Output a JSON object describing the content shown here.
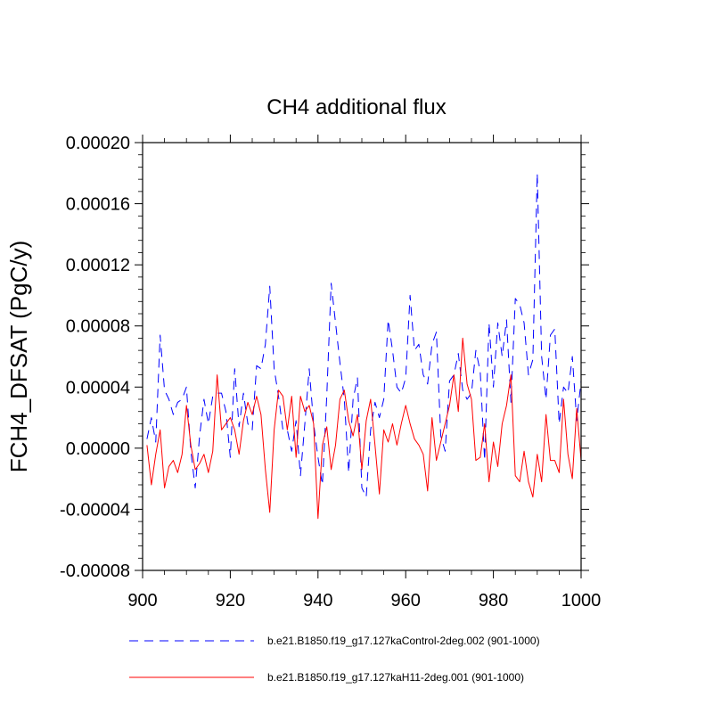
{
  "chart_data": {
    "type": "line",
    "title": "CH4 additional flux",
    "xlabel": "",
    "ylabel": "FCH4_DFSAT  (PgC/y)",
    "xlim": [
      900,
      1000
    ],
    "ylim": [
      -8e-05,
      0.0002
    ],
    "x_ticks": [
      900,
      920,
      940,
      960,
      980,
      1000
    ],
    "x_tick_labels": [
      "900",
      "920",
      "940",
      "960",
      "980",
      "1000"
    ],
    "y_ticks": [
      -8e-05,
      -4e-05,
      0,
      4e-05,
      8e-05,
      0.00012,
      0.00016,
      0.0002
    ],
    "y_tick_labels": [
      "-0.00008",
      "-0.00004",
      "0.00000",
      "0.00004",
      "0.00008",
      "0.00012",
      "0.00016",
      "0.00020"
    ],
    "grid": false,
    "legend_position": "bottom",
    "x": [
      901,
      902,
      903,
      904,
      905,
      906,
      907,
      908,
      909,
      910,
      911,
      912,
      913,
      914,
      915,
      916,
      917,
      918,
      919,
      920,
      921,
      922,
      923,
      924,
      925,
      926,
      927,
      928,
      929,
      930,
      931,
      932,
      933,
      934,
      935,
      936,
      937,
      938,
      939,
      940,
      941,
      942,
      943,
      944,
      945,
      946,
      947,
      948,
      949,
      950,
      951,
      952,
      953,
      954,
      955,
      956,
      957,
      958,
      959,
      960,
      961,
      962,
      963,
      964,
      965,
      966,
      967,
      968,
      969,
      970,
      971,
      972,
      973,
      974,
      975,
      976,
      977,
      978,
      979,
      980,
      981,
      982,
      983,
      984,
      985,
      986,
      987,
      988,
      989,
      990,
      991,
      992,
      993,
      994,
      995,
      996,
      997,
      998,
      999,
      1000
    ],
    "series": [
      {
        "name": "b.e21.B1850.f19_g17.127kaControl-2deg.002 (901-1000)",
        "color": "#0000ff",
        "dash": "dashed",
        "values": [
          6e-06,
          2e-05,
          4e-06,
          7.4e-05,
          3.8e-05,
          3.2e-05,
          2.2e-05,
          3e-05,
          3.2e-05,
          4e-05,
          -2e-06,
          -2.6e-05,
          8e-06,
          3.2e-05,
          1.6e-05,
          3.4e-05,
          3.6e-05,
          3.6e-05,
          2.4e-05,
          -6e-06,
          5.2e-05,
          1.4e-05,
          3.6e-05,
          1.6e-05,
          1.2e-05,
          5.4e-05,
          5.2e-05,
          6.8e-05,
          0.000106,
          5.2e-05,
          3.4e-05,
          1.2e-05,
          1.2e-05,
          -2e-06,
          1.8e-05,
          -1.8e-05,
          1.6e-05,
          5.2e-05,
          1.6e-05,
          -6e-06,
          -2.4e-05,
          3.4e-05,
          0.000108,
          8.2e-05,
          5.6e-05,
          3.2e-05,
          -1.6e-05,
          3.2e-05,
          4.6e-05,
          -2.6e-05,
          -3.2e-05,
          1.2e-05,
          3e-05,
          2e-05,
          3.2e-05,
          8.4e-05,
          6.4e-05,
          4e-05,
          3.6e-05,
          4.6e-05,
          0.0001,
          6.4e-05,
          6.8e-05,
          4.8e-05,
          4.2e-05,
          6.8e-05,
          7.6e-05,
          8e-06,
          -2e-06,
          4.4e-05,
          4.8e-05,
          6.2e-05,
          3.8e-05,
          3.2e-05,
          3.6e-05,
          6.4e-05,
          5e-05,
          -8e-06,
          8.2e-05,
          4e-05,
          8.2e-05,
          6e-05,
          8.4e-05,
          3e-05,
          9.8e-05,
          9.4e-05,
          8.2e-05,
          4.8e-05,
          5.8e-05,
          0.00018,
          6e-05,
          3.2e-05,
          7.4e-05,
          7.8e-05,
          1.6e-05,
          4e-05,
          3.6e-05,
          6e-05,
          1.8e-05,
          4.4e-05
        ]
      },
      {
        "name": "b.e21.B1850.f19_g17.127kaH11-2deg.001 (901-1000)",
        "color": "#ff0000",
        "dash": "solid",
        "values": [
          2e-06,
          -2.4e-05,
          -4e-06,
          1.2e-05,
          -2.6e-05,
          -1.2e-05,
          -8e-06,
          -1.6e-05,
          -4e-06,
          2.8e-05,
          2e-06,
          -1.4e-05,
          -1e-05,
          -4e-06,
          -1.6e-05,
          -2e-06,
          4.8e-05,
          1.2e-05,
          1.6e-05,
          2e-05,
          1.2e-05,
          -4e-06,
          1.8e-05,
          3e-05,
          2.2e-05,
          3.4e-05,
          2.2e-05,
          -1.4e-05,
          -4.2e-05,
          1.2e-05,
          3.8e-05,
          3.4e-05,
          1.2e-05,
          3.4e-05,
          -6e-06,
          3.4e-05,
          2.4e-05,
          2.8e-05,
          1.6e-05,
          -4.6e-05,
          2e-06,
          1.4e-05,
          -1.4e-05,
          2e-06,
          3.2e-05,
          3.8e-05,
          1.8e-05,
          8e-06,
          2.2e-05,
          -1.4e-05,
          1.8e-05,
          3.2e-05,
          2e-06,
          -3e-05,
          1.2e-05,
          4e-06,
          1.6e-05,
          2e-06,
          1.6e-05,
          2.8e-05,
          1.6e-05,
          6e-06,
          2e-06,
          -4e-06,
          -2.8e-05,
          2e-05,
          -8e-06,
          4e-06,
          1.6e-05,
          2.8e-05,
          4.8e-05,
          2.4e-05,
          7.2e-05,
          4.2e-05,
          3.2e-05,
          -8e-06,
          -6e-06,
          1.6e-05,
          -2.2e-05,
          4e-06,
          -1.2e-05,
          1.6e-05,
          2.8e-05,
          4.8e-05,
          -1.8e-05,
          -2.2e-05,
          -2e-06,
          -2.2e-05,
          -3.2e-05,
          -4e-06,
          -2.2e-05,
          2.2e-05,
          -8e-06,
          -8e-06,
          -1.6e-05,
          3.2e-05,
          -4e-06,
          -2e-05,
          2.6e-05,
          -8e-06
        ]
      }
    ]
  }
}
